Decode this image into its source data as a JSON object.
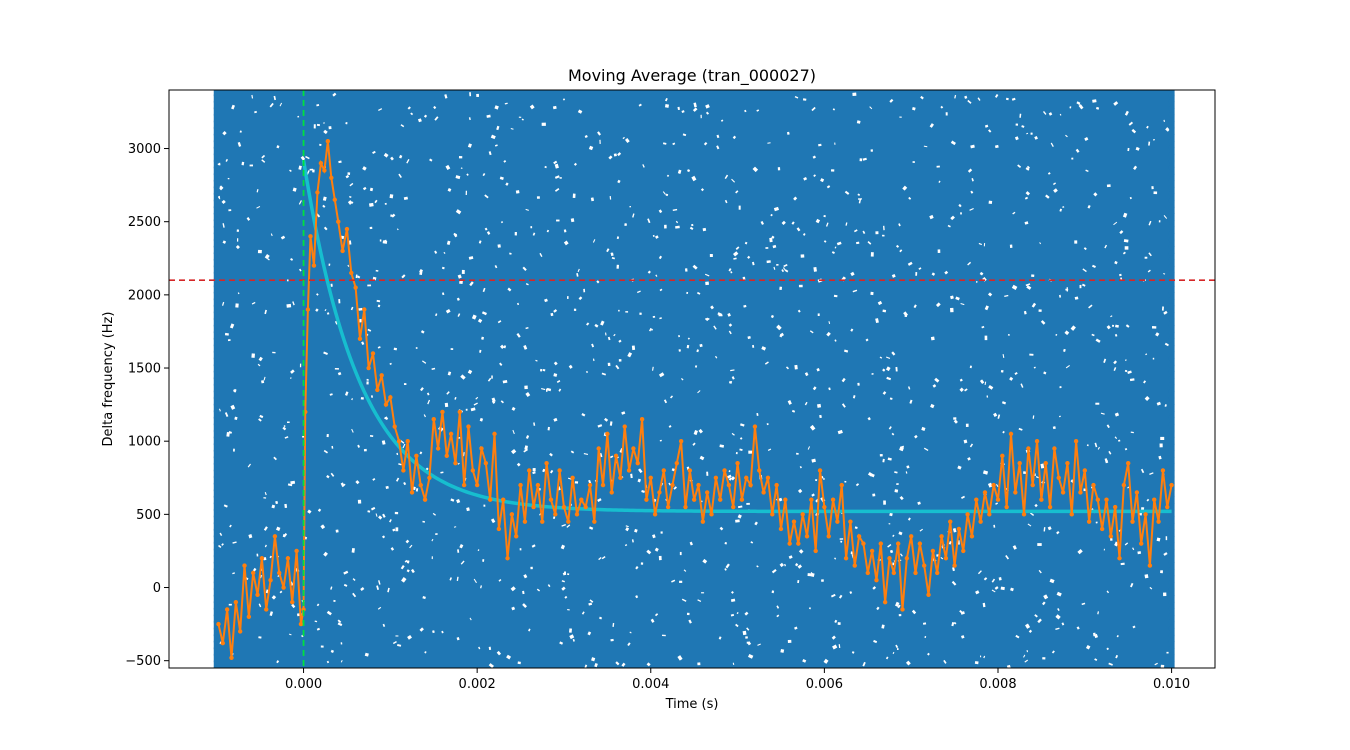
{
  "chart_data": {
    "type": "line",
    "title": "Moving Average (tran_000027)",
    "xlabel": "Time (s)",
    "ylabel": "Delta frequency (Hz)",
    "xlim": [
      -0.00155,
      0.0105
    ],
    "ylim": [
      -550,
      3400
    ],
    "x_ticks": [
      0.0,
      0.002,
      0.004,
      0.006,
      0.008,
      0.01
    ],
    "x_tick_labels": [
      "0.000",
      "0.002",
      "0.004",
      "0.006",
      "0.008",
      "0.010"
    ],
    "y_ticks": [
      -500,
      0,
      500,
      1000,
      1500,
      2000,
      2500,
      3000
    ],
    "y_tick_labels": [
      "−500",
      "0",
      "500",
      "1000",
      "1500",
      "2000",
      "2500",
      "3000"
    ],
    "grid": false,
    "colors": {
      "raw_points": "#1f77b4",
      "moving_average": "#ff7f0e",
      "fit": "#17becf",
      "threshold": "#d62728",
      "trigger": "#00e040"
    },
    "raw_data_range": {
      "x": [
        -0.001,
        0.01
      ],
      "y": [
        -550,
        3400
      ]
    },
    "threshold_y": 2100,
    "trigger_x": 0.0,
    "fit": {
      "form": "exponential-decay",
      "t0": 0.0,
      "amplitude": 2400,
      "tau": 0.00065,
      "offset": 520,
      "x_range": [
        0.0,
        0.01
      ]
    },
    "series": [
      {
        "type": "line-markers",
        "points": [
          [
            -0.00098,
            -250
          ],
          [
            -0.00093,
            -380
          ],
          [
            -0.00088,
            -150
          ],
          [
            -0.00083,
            -480
          ],
          [
            -0.00078,
            -100
          ],
          [
            -0.00073,
            -300
          ],
          [
            -0.00068,
            150
          ],
          [
            -0.00063,
            -200
          ],
          [
            -0.00058,
            100
          ],
          [
            -0.00053,
            -50
          ],
          [
            -0.00048,
            200
          ],
          [
            -0.00043,
            -150
          ],
          [
            -0.00038,
            50
          ],
          [
            -0.00033,
            350
          ],
          [
            -0.00028,
            100
          ],
          [
            -0.00023,
            0
          ],
          [
            -0.00018,
            200
          ],
          [
            -0.00013,
            -100
          ],
          [
            -8e-05,
            250
          ],
          [
            -3e-05,
            -250
          ],
          [
            0.0,
            -150
          ],
          [
            2e-05,
            1200
          ],
          [
            5e-05,
            1900
          ],
          [
            8e-05,
            2400
          ],
          [
            0.00012,
            2200
          ],
          [
            0.00016,
            2700
          ],
          [
            0.0002,
            2900
          ],
          [
            0.00024,
            2850
          ],
          [
            0.00028,
            3050
          ],
          [
            0.00032,
            2800
          ],
          [
            0.00036,
            2650
          ],
          [
            0.0004,
            2500
          ],
          [
            0.00045,
            2300
          ],
          [
            0.0005,
            2450
          ],
          [
            0.00055,
            2150
          ],
          [
            0.0006,
            2050
          ],
          [
            0.00065,
            1700
          ],
          [
            0.0007,
            1900
          ],
          [
            0.00075,
            1500
          ],
          [
            0.0008,
            1600
          ],
          [
            0.00085,
            1350
          ],
          [
            0.0009,
            1450
          ],
          [
            0.00095,
            1250
          ],
          [
            0.001,
            1300
          ],
          [
            0.00105,
            1100
          ],
          [
            0.0011,
            1000
          ],
          [
            0.00115,
            800
          ],
          [
            0.0012,
            1000
          ],
          [
            0.00125,
            650
          ],
          [
            0.0013,
            900
          ],
          [
            0.00135,
            700
          ],
          [
            0.0014,
            600
          ],
          [
            0.00145,
            750
          ],
          [
            0.0015,
            1150
          ],
          [
            0.00155,
            950
          ],
          [
            0.0016,
            1200
          ],
          [
            0.00165,
            900
          ],
          [
            0.0017,
            1050
          ],
          [
            0.00175,
            850
          ],
          [
            0.0018,
            1200
          ],
          [
            0.00185,
            700
          ],
          [
            0.0019,
            1100
          ],
          [
            0.00195,
            800
          ],
          [
            0.002,
            700
          ],
          [
            0.00205,
            950
          ],
          [
            0.0021,
            850
          ],
          [
            0.00215,
            600
          ],
          [
            0.0022,
            1050
          ],
          [
            0.00225,
            400
          ],
          [
            0.0023,
            600
          ],
          [
            0.00235,
            200
          ],
          [
            0.0024,
            500
          ],
          [
            0.00245,
            350
          ],
          [
            0.0025,
            700
          ],
          [
            0.00255,
            450
          ],
          [
            0.0026,
            800
          ],
          [
            0.00265,
            550
          ],
          [
            0.0027,
            700
          ],
          [
            0.00275,
            450
          ],
          [
            0.0028,
            850
          ],
          [
            0.00285,
            600
          ],
          [
            0.0029,
            500
          ],
          [
            0.00295,
            800
          ],
          [
            0.003,
            550
          ],
          [
            0.00305,
            450
          ],
          [
            0.0031,
            750
          ],
          [
            0.00315,
            500
          ],
          [
            0.0032,
            600
          ],
          [
            0.00325,
            550
          ],
          [
            0.0033,
            700
          ],
          [
            0.00335,
            450
          ],
          [
            0.0034,
            950
          ],
          [
            0.00345,
            700
          ],
          [
            0.0035,
            1050
          ],
          [
            0.00355,
            650
          ],
          [
            0.0036,
            900
          ],
          [
            0.00365,
            750
          ],
          [
            0.0037,
            1100
          ],
          [
            0.00375,
            800
          ],
          [
            0.0038,
            950
          ],
          [
            0.00385,
            850
          ],
          [
            0.0039,
            1150
          ],
          [
            0.00395,
            600
          ],
          [
            0.004,
            750
          ],
          [
            0.00405,
            500
          ],
          [
            0.0041,
            650
          ],
          [
            0.00415,
            800
          ],
          [
            0.0042,
            550
          ],
          [
            0.00425,
            700
          ],
          [
            0.0043,
            850
          ],
          [
            0.00435,
            1000
          ],
          [
            0.0044,
            550
          ],
          [
            0.00445,
            800
          ],
          [
            0.0045,
            600
          ],
          [
            0.00455,
            700
          ],
          [
            0.0046,
            450
          ],
          [
            0.00465,
            650
          ],
          [
            0.0047,
            500
          ],
          [
            0.00475,
            750
          ],
          [
            0.0048,
            600
          ],
          [
            0.00485,
            800
          ],
          [
            0.0049,
            700
          ],
          [
            0.00495,
            550
          ],
          [
            0.005,
            850
          ],
          [
            0.00505,
            600
          ],
          [
            0.0051,
            750
          ],
          [
            0.00515,
            700
          ],
          [
            0.0052,
            1100
          ],
          [
            0.00525,
            800
          ],
          [
            0.0053,
            650
          ],
          [
            0.00535,
            750
          ],
          [
            0.0054,
            500
          ],
          [
            0.00545,
            700
          ],
          [
            0.0055,
            400
          ],
          [
            0.00555,
            600
          ],
          [
            0.0056,
            300
          ],
          [
            0.00565,
            450
          ],
          [
            0.0057,
            300
          ],
          [
            0.00575,
            500
          ],
          [
            0.0058,
            350
          ],
          [
            0.00585,
            600
          ],
          [
            0.0059,
            250
          ],
          [
            0.00595,
            800
          ],
          [
            0.006,
            550
          ],
          [
            0.00605,
            350
          ],
          [
            0.0061,
            600
          ],
          [
            0.00615,
            450
          ],
          [
            0.0062,
            700
          ],
          [
            0.00625,
            200
          ],
          [
            0.0063,
            450
          ],
          [
            0.00635,
            150
          ],
          [
            0.0064,
            350
          ],
          [
            0.00645,
            300
          ],
          [
            0.0065,
            100
          ],
          [
            0.00655,
            250
          ],
          [
            0.0066,
            50
          ],
          [
            0.00665,
            300
          ],
          [
            0.0067,
            -100
          ],
          [
            0.00675,
            200
          ],
          [
            0.0068,
            100
          ],
          [
            0.00685,
            300
          ],
          [
            0.0069,
            -150
          ],
          [
            0.00695,
            200
          ],
          [
            0.007,
            350
          ],
          [
            0.00705,
            100
          ],
          [
            0.0071,
            300
          ],
          [
            0.00715,
            150
          ],
          [
            0.0072,
            -50
          ],
          [
            0.00725,
            250
          ],
          [
            0.0073,
            100
          ],
          [
            0.00735,
            350
          ],
          [
            0.0074,
            200
          ],
          [
            0.00745,
            450
          ],
          [
            0.0075,
            150
          ],
          [
            0.00755,
            400
          ],
          [
            0.0076,
            250
          ],
          [
            0.00765,
            500
          ],
          [
            0.0077,
            350
          ],
          [
            0.00775,
            600
          ],
          [
            0.0078,
            450
          ],
          [
            0.00785,
            650
          ],
          [
            0.0079,
            500
          ],
          [
            0.00795,
            700
          ],
          [
            0.008,
            600
          ],
          [
            0.00805,
            900
          ],
          [
            0.0081,
            550
          ],
          [
            0.00815,
            1050
          ],
          [
            0.0082,
            650
          ],
          [
            0.00825,
            850
          ],
          [
            0.0083,
            500
          ],
          [
            0.00835,
            950
          ],
          [
            0.0084,
            700
          ],
          [
            0.00845,
            1000
          ],
          [
            0.0085,
            600
          ],
          [
            0.00855,
            850
          ],
          [
            0.0086,
            550
          ],
          [
            0.00865,
            950
          ],
          [
            0.0087,
            750
          ],
          [
            0.00875,
            650
          ],
          [
            0.0088,
            850
          ],
          [
            0.00885,
            500
          ],
          [
            0.0089,
            1000
          ],
          [
            0.00895,
            650
          ],
          [
            0.009,
            800
          ],
          [
            0.00905,
            450
          ],
          [
            0.0091,
            700
          ],
          [
            0.00915,
            600
          ],
          [
            0.0092,
            400
          ],
          [
            0.00925,
            600
          ],
          [
            0.0093,
            350
          ],
          [
            0.00935,
            550
          ],
          [
            0.0094,
            200
          ],
          [
            0.00945,
            700
          ],
          [
            0.0095,
            850
          ],
          [
            0.00955,
            450
          ],
          [
            0.0096,
            650
          ],
          [
            0.00965,
            300
          ],
          [
            0.0097,
            500
          ],
          [
            0.00975,
            150
          ],
          [
            0.0098,
            600
          ],
          [
            0.00985,
            450
          ],
          [
            0.0099,
            800
          ],
          [
            0.00995,
            550
          ],
          [
            0.01,
            700
          ]
        ]
      }
    ]
  }
}
